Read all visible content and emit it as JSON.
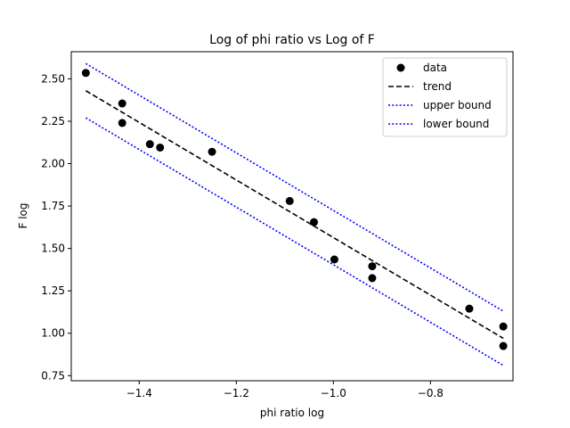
{
  "chart_data": {
    "type": "scatter",
    "title": "Log of phi ratio vs Log of F",
    "xlabel": "phi ratio log",
    "ylabel": "F log",
    "xlim": [
      -1.54,
      -0.63
    ],
    "ylim": [
      0.72,
      2.66
    ],
    "xticks": [
      -1.4,
      -1.2,
      -1.0,
      -0.8
    ],
    "xtick_labels": [
      "−1.4",
      "−1.2",
      "−1.0",
      "−0.8"
    ],
    "yticks": [
      0.75,
      1.0,
      1.25,
      1.5,
      1.75,
      2.0,
      2.25,
      2.5
    ],
    "ytick_labels": [
      "0.75",
      "1.00",
      "1.25",
      "1.50",
      "1.75",
      "2.00",
      "2.25",
      "2.50"
    ],
    "grid": false,
    "legend_position": "top-right",
    "series": [
      {
        "name": "data",
        "kind": "scatter",
        "color": "#000000",
        "marker": "circle",
        "x": [
          -1.51,
          -1.435,
          -1.435,
          -1.378,
          -1.357,
          -1.25,
          -1.09,
          -1.04,
          -0.998,
          -0.92,
          -0.92,
          -0.72,
          -0.65,
          -0.65
        ],
        "y": [
          2.535,
          2.355,
          2.24,
          2.115,
          2.095,
          2.07,
          1.78,
          1.655,
          1.435,
          1.395,
          1.325,
          1.145,
          1.04,
          0.925
        ]
      },
      {
        "name": "trend",
        "kind": "line",
        "color": "#000000",
        "dash": "dashed",
        "x": [
          -1.51,
          -0.65
        ],
        "y": [
          2.43,
          0.97
        ]
      },
      {
        "name": "upper bound",
        "kind": "line",
        "color": "#0000ff",
        "dash": "dotted",
        "x": [
          -1.51,
          -0.65
        ],
        "y": [
          2.59,
          1.13
        ]
      },
      {
        "name": "lower bound",
        "kind": "line",
        "color": "#0000ff",
        "dash": "dotted",
        "x": [
          -1.51,
          -0.65
        ],
        "y": [
          2.27,
          0.81
        ]
      }
    ]
  }
}
